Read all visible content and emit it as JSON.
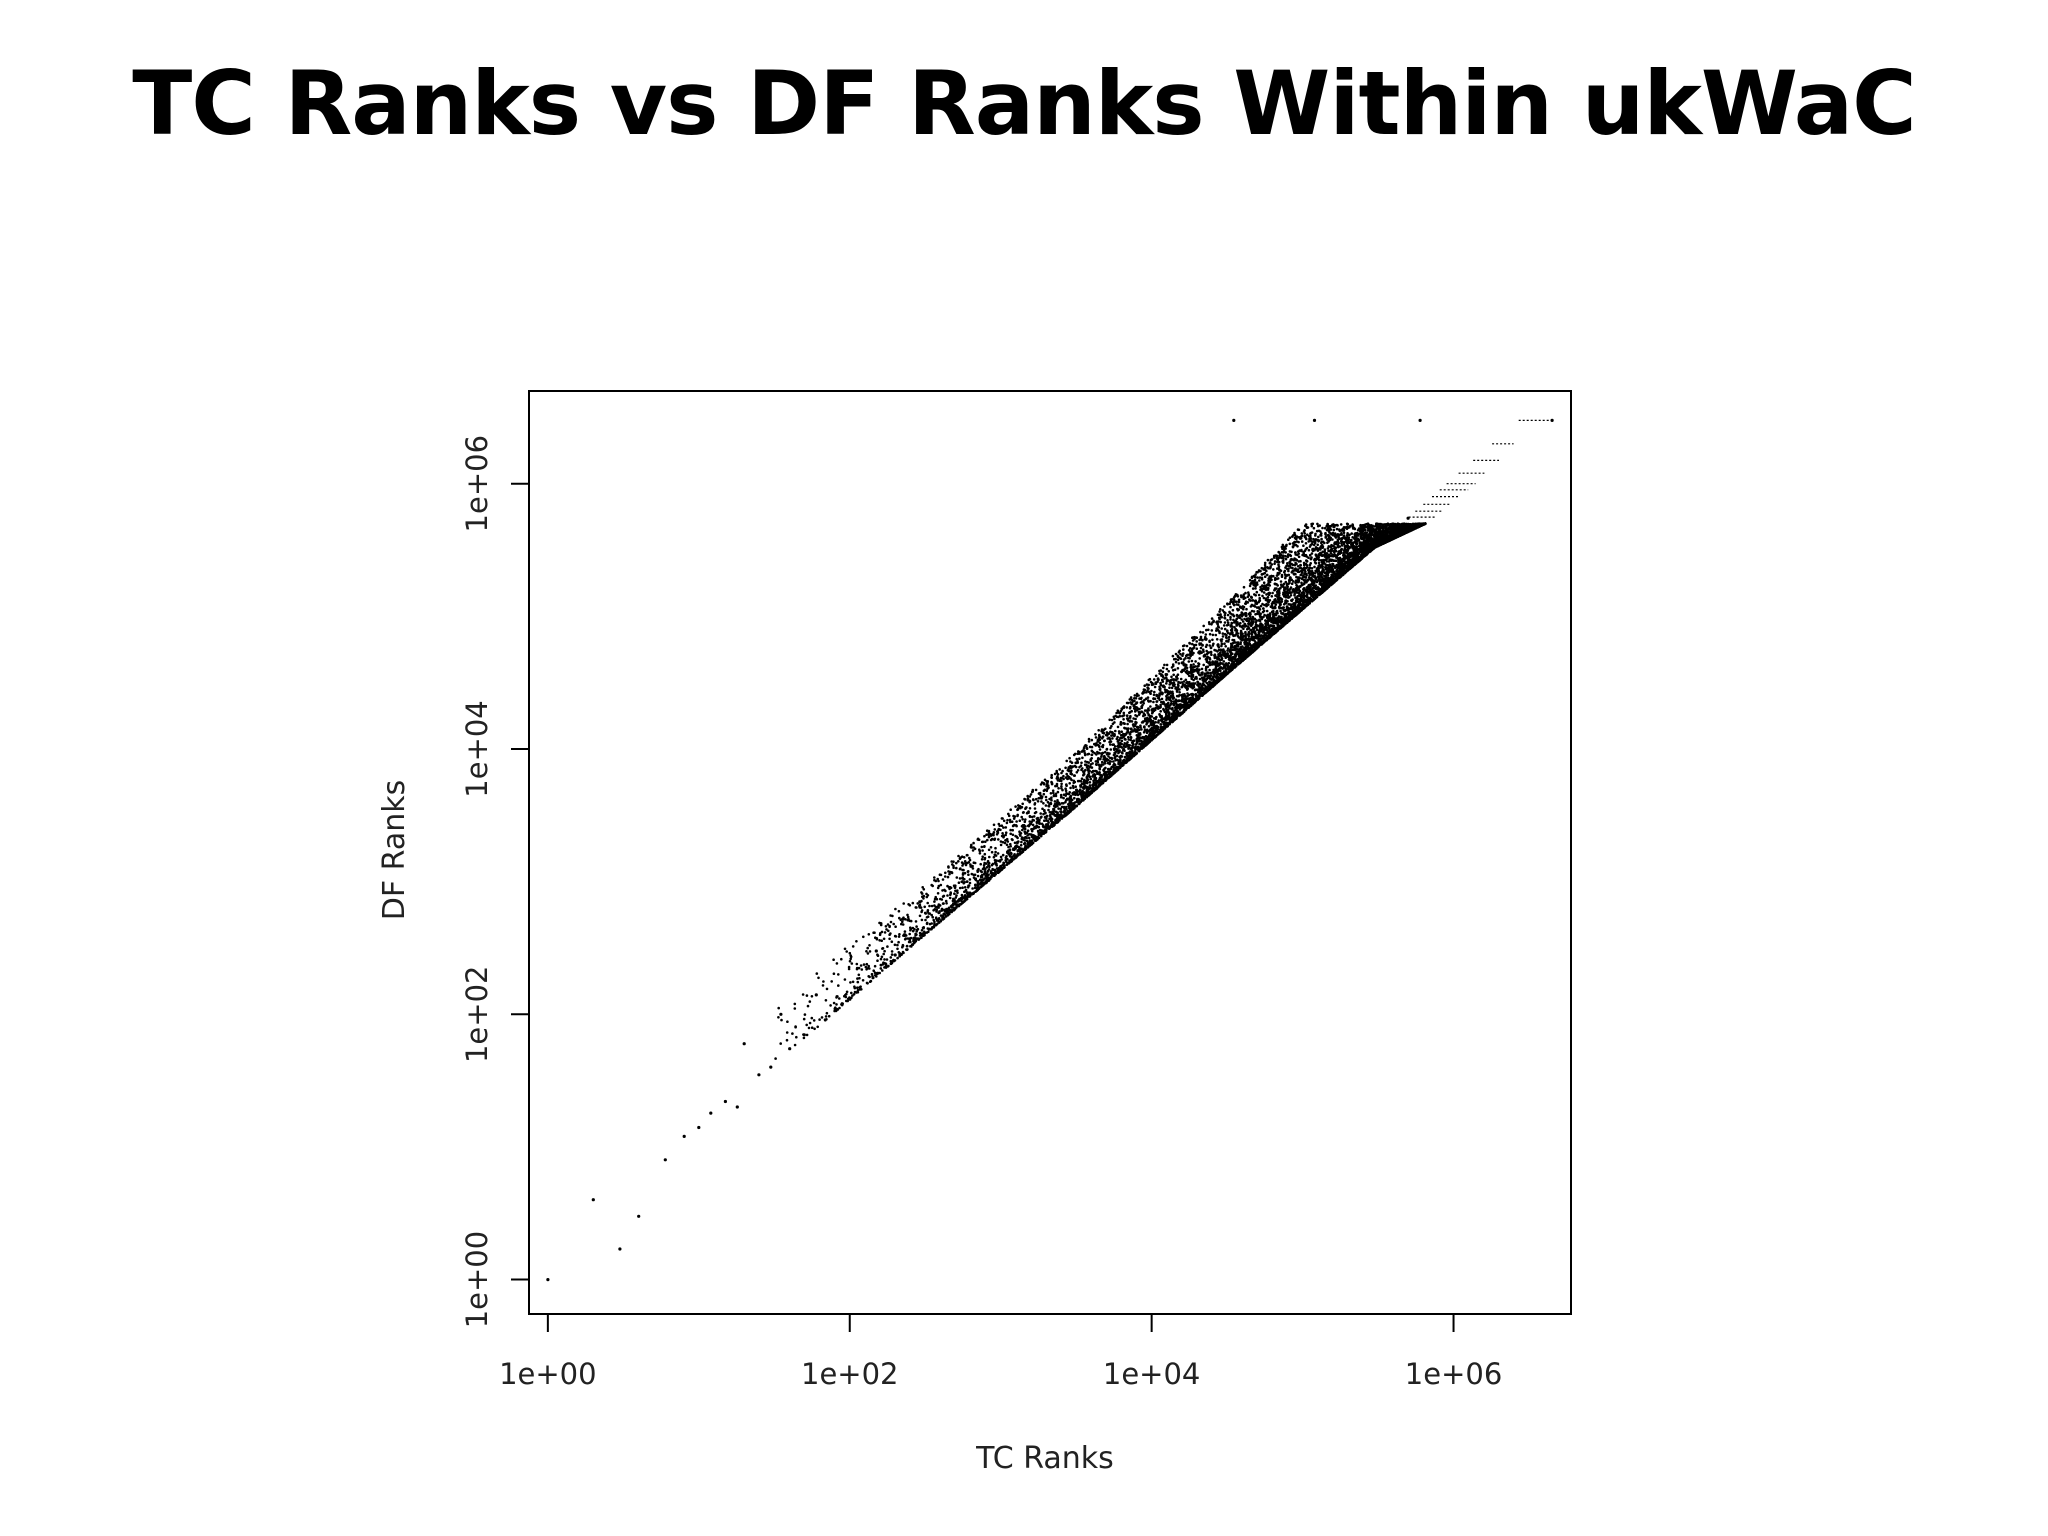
{
  "slide": {
    "title": "TC Ranks vs DF Ranks Within ukWaC"
  },
  "chart_data": {
    "type": "scatter",
    "title": "",
    "xlabel": "TC Ranks",
    "ylabel": "DF Ranks",
    "x_scale": "log",
    "y_scale": "log",
    "xlim": [
      0.75,
      6000000
    ],
    "ylim": [
      0.55,
      5000000
    ],
    "x_ticks": [
      1,
      100,
      10000,
      1000000
    ],
    "y_ticks": [
      1,
      100,
      10000,
      1000000
    ],
    "x_tick_labels": [
      "1e+00",
      "1e+02",
      "1e+04",
      "1e+06"
    ],
    "y_tick_labels": [
      "1e+00",
      "1e+02",
      "1e+04",
      "1e+06"
    ],
    "marker_color": "#000000",
    "points": [
      [
        1,
        1
      ],
      [
        2,
        4
      ],
      [
        3,
        1.7
      ],
      [
        4,
        3
      ],
      [
        6,
        8
      ],
      [
        8,
        12
      ],
      [
        10,
        14
      ],
      [
        12,
        18
      ],
      [
        15,
        22
      ],
      [
        18,
        20
      ],
      [
        20,
        60
      ],
      [
        25,
        35
      ],
      [
        30,
        40
      ],
      [
        35,
        100
      ],
      [
        40,
        55
      ],
      [
        50,
        70
      ],
      [
        60,
        140
      ],
      [
        80,
        110
      ],
      [
        100,
        130
      ],
      [
        150,
        300
      ],
      [
        200,
        280
      ],
      [
        300,
        400
      ],
      [
        500,
        700
      ],
      [
        800,
        1100
      ],
      [
        1000,
        1300
      ],
      [
        2000,
        2600
      ],
      [
        3000,
        3800
      ],
      [
        5000,
        6000
      ],
      [
        10000,
        12000
      ],
      [
        20000,
        25000
      ],
      [
        50000,
        60000
      ],
      [
        100000,
        120000
      ],
      [
        200000,
        240000
      ],
      [
        500000,
        550000
      ],
      [
        35000,
        3000000
      ],
      [
        120000,
        3000000
      ],
      [
        600000,
        3000000
      ],
      [
        4500000,
        3000000
      ]
    ],
    "band": {
      "description_free": true,
      "x_range": [
        30,
        650000
      ],
      "upper_edge": [
        [
          30,
          120
        ],
        [
          300,
          900
        ],
        [
          3000,
          9000
        ],
        [
          30000,
          120000
        ],
        [
          100000,
          500000
        ],
        [
          650000,
          500000
        ]
      ],
      "lower_edge": [
        [
          30,
          40
        ],
        [
          300,
          380
        ],
        [
          3000,
          3500
        ],
        [
          30000,
          35000
        ],
        [
          300000,
          330000
        ],
        [
          650000,
          500000
        ]
      ]
    },
    "tie_lines_y": [
      3000000,
      2000000,
      1500000,
      1200000,
      1000000,
      900000,
      800000,
      700000,
      620000,
      560000,
      500000
    ],
    "tie_lines_x_end": [
      4500000,
      2500000,
      2000000,
      1600000,
      1400000,
      1250000,
      1100000,
      950000,
      850000,
      750000,
      650000
    ]
  }
}
